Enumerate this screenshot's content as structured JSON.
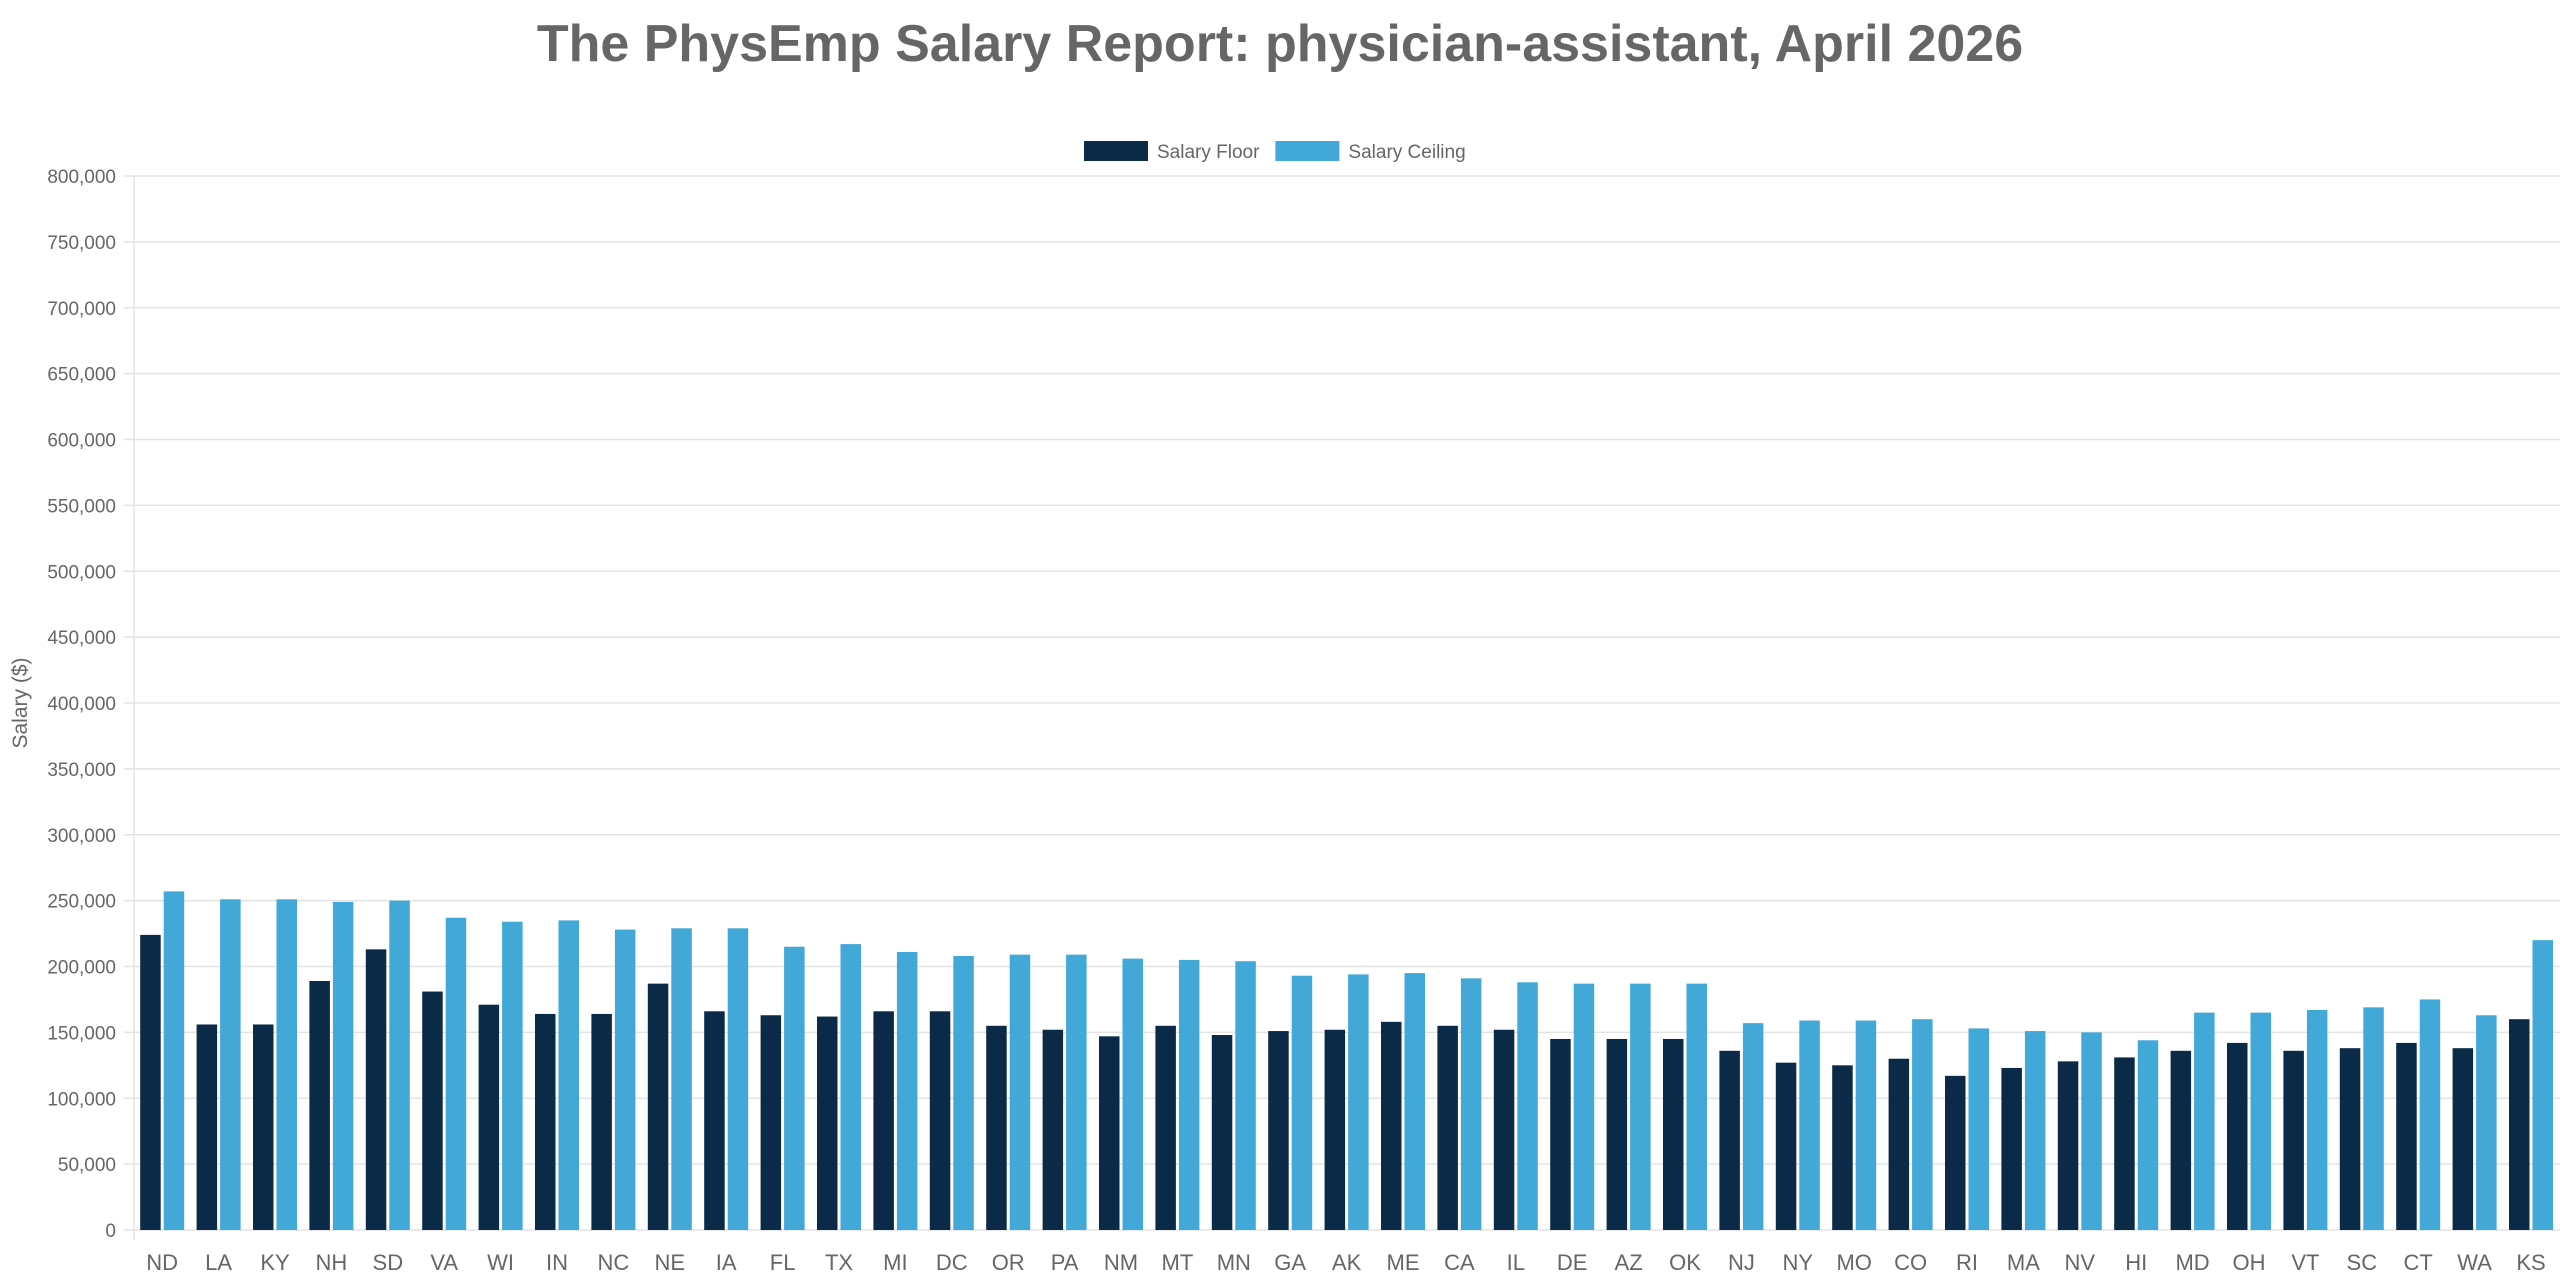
{
  "chart_data": {
    "type": "bar",
    "title": "The PhysEmp Salary Report: physician-assistant, April 2026",
    "ylabel": "Salary ($)",
    "xlabel": "",
    "ylim": [
      0,
      800000
    ],
    "ytick_step": 50000,
    "grid": true,
    "legend_position": "top-center",
    "categories": [
      "ND",
      "LA",
      "KY",
      "NH",
      "SD",
      "VA",
      "WI",
      "IN",
      "NC",
      "NE",
      "IA",
      "FL",
      "TX",
      "MI",
      "DC",
      "OR",
      "PA",
      "NM",
      "MT",
      "MN",
      "GA",
      "AK",
      "ME",
      "CA",
      "IL",
      "DE",
      "AZ",
      "OK",
      "NJ",
      "NY",
      "MO",
      "CO",
      "RI",
      "MA",
      "NV",
      "HI",
      "MD",
      "OH",
      "VT",
      "SC",
      "CT",
      "WA",
      "KS"
    ],
    "series": [
      {
        "name": "Salary Floor",
        "color": "#0b2a48",
        "values": [
          224000,
          156000,
          156000,
          189000,
          213000,
          181000,
          171000,
          164000,
          164000,
          187000,
          166000,
          163000,
          162000,
          166000,
          166000,
          155000,
          152000,
          147000,
          155000,
          148000,
          151000,
          152000,
          158000,
          155000,
          152000,
          145000,
          145000,
          145000,
          136000,
          127000,
          125000,
          130000,
          117000,
          123000,
          128000,
          131000,
          136000,
          142000,
          136000,
          138000,
          142000,
          138000,
          160000
        ]
      },
      {
        "name": "Salary Ceiling",
        "color": "#42a8d8",
        "values": [
          257000,
          251000,
          251000,
          249000,
          250000,
          237000,
          234000,
          235000,
          228000,
          229000,
          229000,
          215000,
          217000,
          211000,
          208000,
          209000,
          209000,
          206000,
          205000,
          204000,
          193000,
          194000,
          195000,
          191000,
          188000,
          187000,
          187000,
          187000,
          157000,
          159000,
          159000,
          160000,
          153000,
          151000,
          150000,
          144000,
          165000,
          165000,
          167000,
          169000,
          175000,
          163000,
          220000
        ]
      }
    ]
  }
}
